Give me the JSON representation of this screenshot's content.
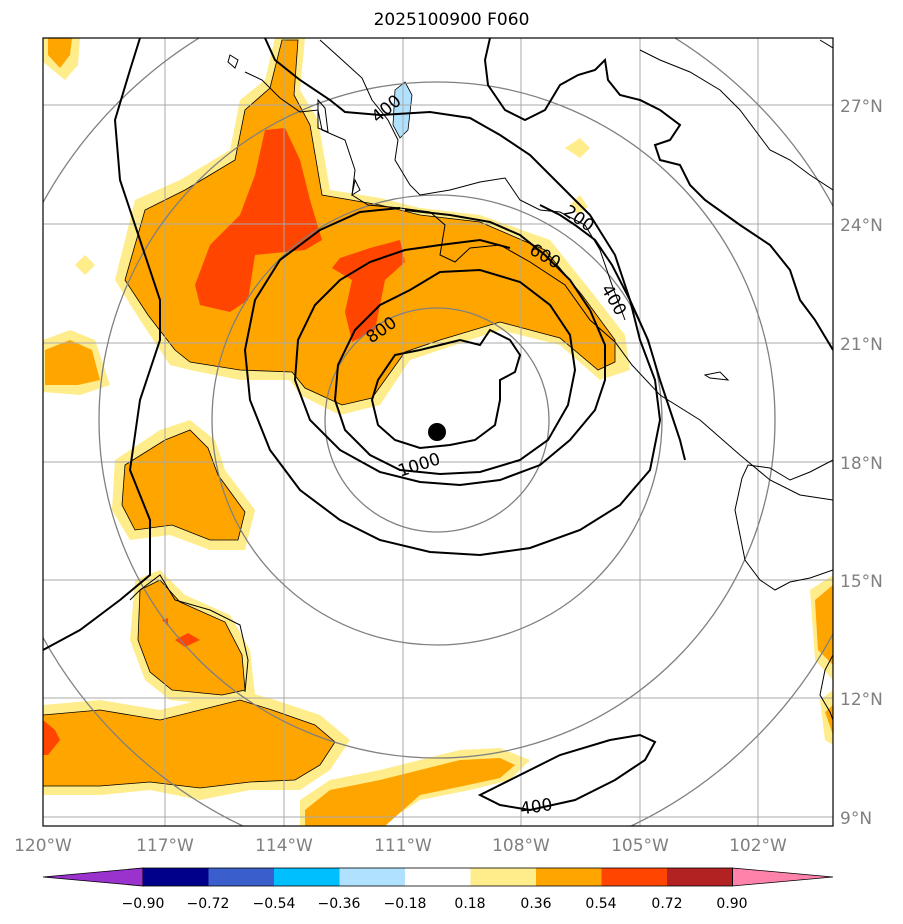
{
  "title": "2025100900 F060",
  "map": {
    "lon_labels": [
      "120°W",
      "117°W",
      "114°W",
      "111°W",
      "108°W",
      "105°W",
      "102°W"
    ],
    "lat_labels": [
      "27°N",
      "24°N",
      "21°N",
      "18°N",
      "15°N",
      "12°N",
      "9°N"
    ],
    "contour_labels": [
      "200",
      "400",
      "400",
      "400",
      "600",
      "800",
      "1000"
    ],
    "storm_center": {
      "lon": "109.9W",
      "lat": "18.7N"
    }
  },
  "colorbar": {
    "ticks": [
      "−0.90",
      "−0.72",
      "−0.54",
      "−0.36",
      "−0.18",
      "0.18",
      "0.36",
      "0.54",
      "0.72",
      "0.90"
    ],
    "colors": [
      "#9a32cd",
      "#00008b",
      "#3a5fcd",
      "#00bfff",
      "#b0e2ff",
      "#ffffff",
      "#ffec8b",
      "#ffa500",
      "#ff4500",
      "#b22222",
      "#ff82ab"
    ]
  },
  "fill_colors": {
    "light": "#ffec8b",
    "medium": "#ffa500",
    "strong": "#ff4500",
    "neg_light": "#b0e2ff"
  }
}
